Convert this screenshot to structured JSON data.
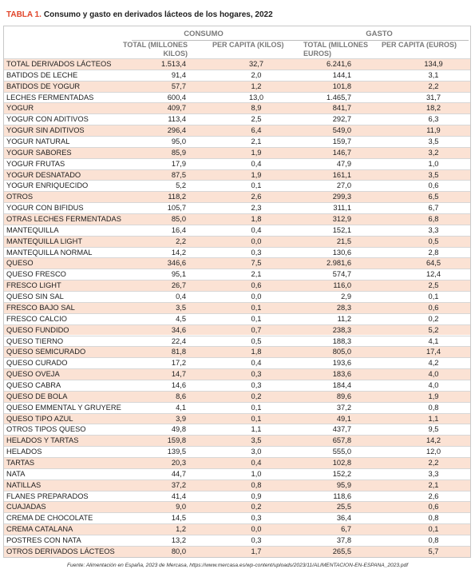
{
  "title": {
    "label": "TABLA 1.",
    "text": "Consumo y gasto en derivados lácteos de los hogares, 2022"
  },
  "table": {
    "group_headers": [
      "CONSUMO",
      "GASTO"
    ],
    "column_headers": [
      "TOTAL (MILLONES KILOS)",
      "PER CAPITA (KILOS)",
      "TOTAL (MILLONES EUROS)",
      "PER CAPITA (EUROS)"
    ],
    "rows": [
      [
        "TOTAL DERIVADOS LÁCTEOS",
        "1.513,4",
        "32,7",
        "6.241,6",
        "134,9"
      ],
      [
        "BATIDOS DE LECHE",
        "91,4",
        "2,0",
        "144,1",
        "3,1"
      ],
      [
        "BATIDOS DE YOGUR",
        "57,7",
        "1,2",
        "101,8",
        "2,2"
      ],
      [
        "LECHES FERMENTADAS",
        "600,4",
        "13,0",
        "1.465,7",
        "31,7"
      ],
      [
        "YOGUR",
        "409,7",
        "8,9",
        "841,7",
        "18,2"
      ],
      [
        "YOGUR CON ADITIVOS",
        "113,4",
        "2,5",
        "292,7",
        "6,3"
      ],
      [
        "YOGUR SIN ADITIVOS",
        "296,4",
        "6,4",
        "549,0",
        "11,9"
      ],
      [
        "YOGUR NATURAL",
        "95,0",
        "2,1",
        "159,7",
        "3,5"
      ],
      [
        "YOGUR SABORES",
        "85,9",
        "1,9",
        "146,7",
        "3,2"
      ],
      [
        "YOGUR FRUTAS",
        "17,9",
        "0,4",
        "47,9",
        "1,0"
      ],
      [
        "YOGUR DESNATADO",
        "87,5",
        "1,9",
        "161,1",
        "3,5"
      ],
      [
        "YOGUR ENRIQUECIDO",
        "5,2",
        "0,1",
        "27,0",
        "0,6"
      ],
      [
        "OTROS",
        "118,2",
        "2,6",
        "299,3",
        "6,5"
      ],
      [
        "YOGUR CON BIFIDUS",
        "105,7",
        "2,3",
        "311,1",
        "6,7"
      ],
      [
        "OTRAS LECHES FERMENTADAS",
        "85,0",
        "1,8",
        "312,9",
        "6,8"
      ],
      [
        "MANTEQUILLA",
        "16,4",
        "0,4",
        "152,1",
        "3,3"
      ],
      [
        "MANTEQUILLA LIGHT",
        "2,2",
        "0,0",
        "21,5",
        "0,5"
      ],
      [
        "MANTEQUILLA NORMAL",
        "14,2",
        "0,3",
        "130,6",
        "2,8"
      ],
      [
        "QUESO",
        "346,6",
        "7,5",
        "2.981,6",
        "64,5"
      ],
      [
        "QUESO FRESCO",
        "95,1",
        "2,1",
        "574,7",
        "12,4"
      ],
      [
        "FRESCO LIGHT",
        "26,7",
        "0,6",
        "116,0",
        "2,5"
      ],
      [
        "QUESO SIN SAL",
        "0,4",
        "0,0",
        "2,9",
        "0,1"
      ],
      [
        "FRESCO BAJO SAL",
        "3,5",
        "0,1",
        "28,3",
        "0,6"
      ],
      [
        "FRESCO CALCIO",
        "4,5",
        "0,1",
        "11,2",
        "0,2"
      ],
      [
        "QUESO FUNDIDO",
        "34,6",
        "0,7",
        "238,3",
        "5,2"
      ],
      [
        "QUESO TIERNO",
        "22,4",
        "0,5",
        "188,3",
        "4,1"
      ],
      [
        "QUESO SEMICURADO",
        "81,8",
        "1,8",
        "805,0",
        "17,4"
      ],
      [
        "QUESO CURADO",
        "17,2",
        "0,4",
        "193,6",
        "4,2"
      ],
      [
        "QUESO OVEJA",
        "14,7",
        "0,3",
        "183,6",
        "4,0"
      ],
      [
        "QUESO CABRA",
        "14,6",
        "0,3",
        "184,4",
        "4,0"
      ],
      [
        "QUESO DE BOLA",
        "8,6",
        "0,2",
        "89,6",
        "1,9"
      ],
      [
        "QUESO EMMENTAL Y GRUYERE",
        "4,1",
        "0,1",
        "37,2",
        "0,8"
      ],
      [
        "QUESO TIPO AZUL",
        "3,9",
        "0,1",
        "49,1",
        "1,1"
      ],
      [
        "OTROS TIPOS QUESO",
        "49,8",
        "1,1",
        "437,7",
        "9,5"
      ],
      [
        "HELADOS Y TARTAS",
        "159,8",
        "3,5",
        "657,8",
        "14,2"
      ],
      [
        "HELADOS",
        "139,5",
        "3,0",
        "555,0",
        "12,0"
      ],
      [
        "TARTAS",
        "20,3",
        "0,4",
        "102,8",
        "2,2"
      ],
      [
        "NATA",
        "44,7",
        "1,0",
        "152,2",
        "3,3"
      ],
      [
        "NATILLAS",
        "37,2",
        "0,8",
        "95,9",
        "2,1"
      ],
      [
        "FLANES PREPARADOS",
        "41,4",
        "0,9",
        "118,6",
        "2,6"
      ],
      [
        "CUAJADAS",
        "9,0",
        "0,2",
        "25,5",
        "0,6"
      ],
      [
        "CREMA DE CHOCOLATE",
        "14,5",
        "0,3",
        "36,4",
        "0,8"
      ],
      [
        "CREMA CATALANA",
        "1,2",
        "0,0",
        "6,7",
        "0,1"
      ],
      [
        "POSTRES CON NATA",
        "13,2",
        "0,3",
        "37,8",
        "0,8"
      ],
      [
        "OTROS DERIVADOS LÁCTEOS",
        "80,0",
        "1,7",
        "265,5",
        "5,7"
      ]
    ]
  },
  "source": "Fuente: Alimentación en España, 2023 de Mercasa, https://www.mercasa.es/wp-content/uploads/2023/11/ALIMENTACION-EN-ESPANA_2023.pdf"
}
